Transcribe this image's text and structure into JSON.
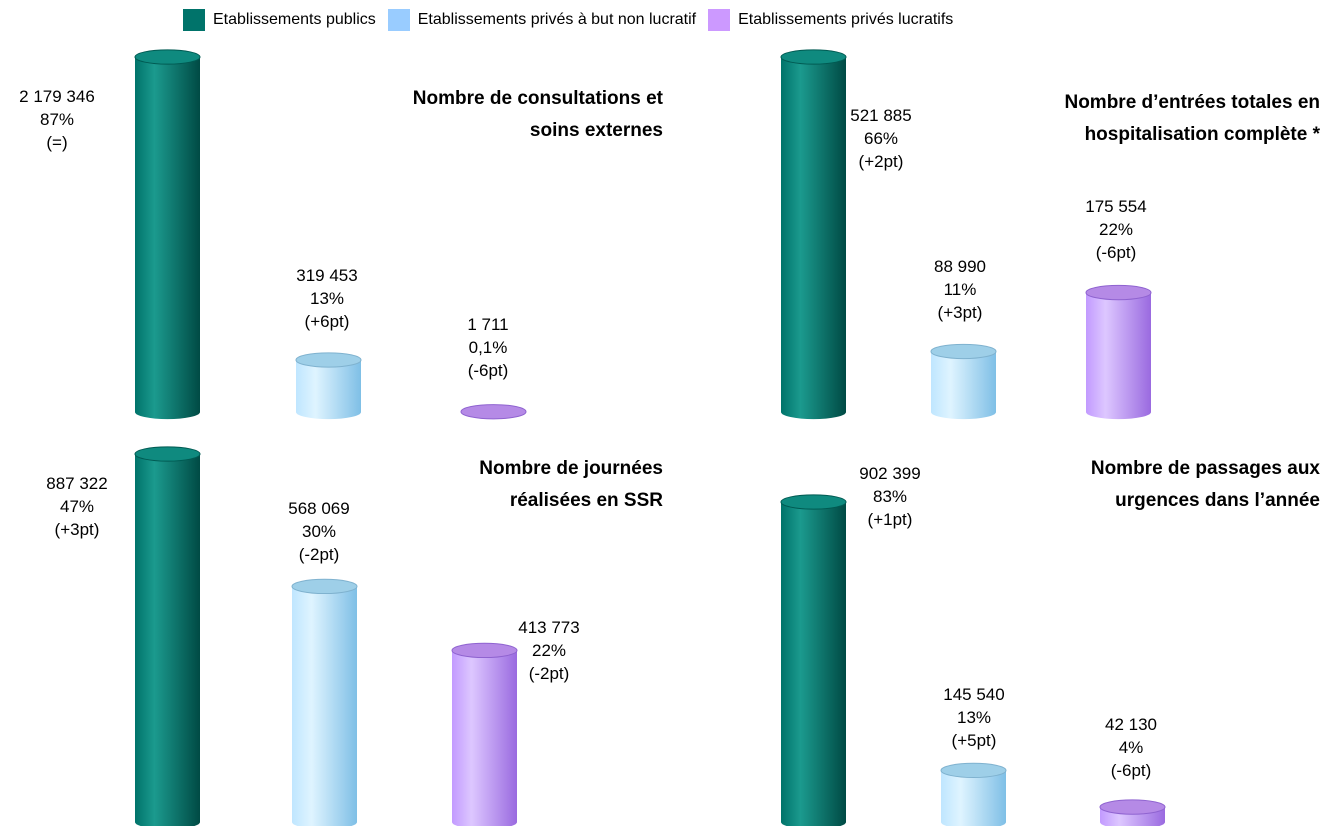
{
  "legend": {
    "items": [
      {
        "label": "Etablissements publics",
        "color": "#00736a"
      },
      {
        "label": "Etablissements privés à but non lucratif",
        "color": "#99ccff"
      },
      {
        "label": "Etablissements privés lucratifs",
        "color": "#cc99ff"
      }
    ]
  },
  "chart_data": [
    {
      "type": "bar",
      "title": [
        "Nombre de consultations et",
        "soins externes"
      ],
      "categories": [
        "Etablissements publics",
        "Etablissements privés à but non lucratif",
        "Etablissements privés lucratifs"
      ],
      "values": [
        2179346,
        319453,
        1711
      ],
      "labels": [
        [
          "2 179 346",
          "87%",
          "(=)"
        ],
        [
          "319 453",
          "13%",
          "(+6pt)"
        ],
        [
          "1 711",
          "0,1%",
          "(-6pt)"
        ]
      ]
    },
    {
      "type": "bar",
      "title": [
        "Nombre d’entrées totales en",
        "hospitalisation complète *"
      ],
      "categories": [
        "Etablissements publics",
        "Etablissements privés à but non lucratif",
        "Etablissements privés lucratifs"
      ],
      "values": [
        521885,
        88990,
        175554
      ],
      "labels": [
        [
          "521 885",
          "66%",
          "(+2pt)"
        ],
        [
          "88 990",
          "11%",
          "(+3pt)"
        ],
        [
          "175 554",
          "22%",
          "(-6pt)"
        ]
      ]
    },
    {
      "type": "bar",
      "title": [
        "Nombre de journées",
        "réalisées en SSR"
      ],
      "categories": [
        "Etablissements publics",
        "Etablissements privés à but non lucratif",
        "Etablissements privés lucratifs"
      ],
      "values": [
        887322,
        568069,
        413773
      ],
      "labels": [
        [
          "887 322",
          "47%",
          "(+3pt)"
        ],
        [
          "568 069",
          "30%",
          "(-2pt)"
        ],
        [
          "413 773",
          "22%",
          "(-2pt)"
        ]
      ]
    },
    {
      "type": "bar",
      "title": [
        "Nombre de passages aux",
        "urgences dans l’année"
      ],
      "categories": [
        "Etablissements publics",
        "Etablissements privés à but non lucratif",
        "Etablissements privés lucratifs"
      ],
      "values": [
        902399,
        145540,
        42130
      ],
      "labels": [
        [
          "902 399",
          "83%",
          "(+1pt)"
        ],
        [
          "145 540",
          "13%",
          "(+5pt)"
        ],
        [
          "42 130",
          "4%",
          "(-6pt)"
        ]
      ]
    }
  ]
}
